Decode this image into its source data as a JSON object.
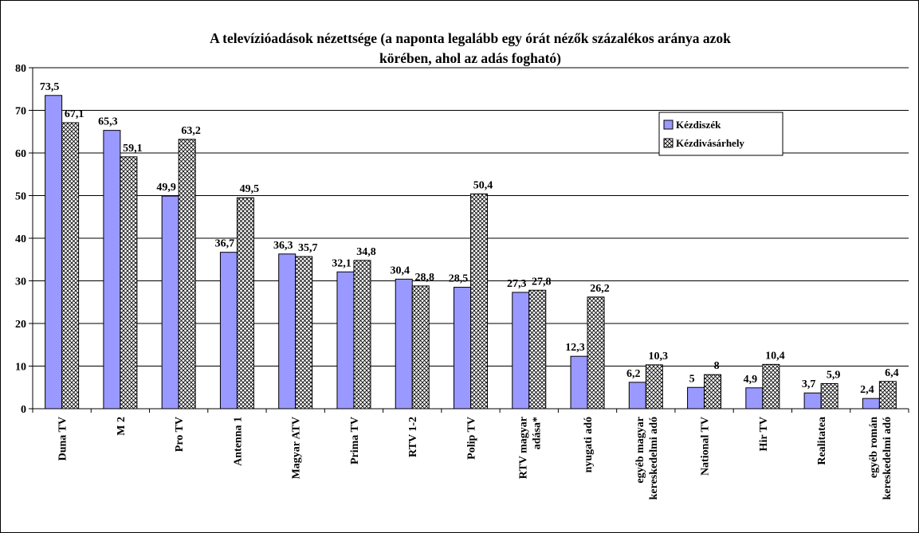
{
  "chart_data": {
    "type": "bar",
    "title_lines": [
      "A televízióadások nézettsége (a naponta legalább egy órát nézők százalékos aránya azok",
      "körében, ahol az adás fogható)"
    ],
    "categories": [
      [
        "Duna TV"
      ],
      [
        "M 2"
      ],
      [
        "Pro TV"
      ],
      [
        "Antenna 1"
      ],
      [
        "Magyar ATV"
      ],
      [
        "Prima TV"
      ],
      [
        "RTV 1-2"
      ],
      [
        "Polip TV"
      ],
      [
        "RTV magyar",
        "adása*"
      ],
      [
        "nyugati adó"
      ],
      [
        "egyéb magyar",
        "kereskedelmi adó"
      ],
      [
        "National TV"
      ],
      [
        "Hir TV"
      ],
      [
        "Realitatea"
      ],
      [
        "egyéb román",
        "kereskedelmi adó"
      ]
    ],
    "series": [
      {
        "name": "Kézdiszék",
        "values": [
          73.5,
          65.3,
          49.9,
          36.7,
          36.3,
          32.1,
          30.4,
          28.5,
          27.3,
          12.3,
          6.2,
          5,
          4.9,
          3.7,
          2.4
        ],
        "labels": [
          "73,5",
          "65,3",
          "49,9",
          "36,7",
          "36,3",
          "32,1",
          "30,4",
          "28,5",
          "27,3",
          "12,3",
          "6,2",
          "5",
          "4,9",
          "3,7",
          "2,4"
        ],
        "color": "#9999ff",
        "pattern": "solid"
      },
      {
        "name": "Kézdivásárhely",
        "values": [
          67.1,
          59.1,
          63.2,
          49.5,
          35.7,
          34.8,
          28.8,
          50.4,
          27.8,
          26.2,
          10.3,
          8,
          10.4,
          5.9,
          6.4
        ],
        "labels": [
          "67,1",
          "59,1",
          "63,2",
          "49,5",
          "35,7",
          "34,8",
          "28,8",
          "50,4",
          "27,8",
          "26,2",
          "10,3",
          "8",
          "10,4",
          "5,9",
          "6,4"
        ],
        "color": "#ffffff",
        "pattern": "crosshatch"
      }
    ],
    "ylim": [
      0,
      80
    ],
    "yticks": [
      "0",
      "10",
      "20",
      "30",
      "40",
      "50",
      "60",
      "70",
      "80"
    ],
    "grid": true,
    "legend_position": "top-right",
    "xlabel": "",
    "ylabel": ""
  }
}
